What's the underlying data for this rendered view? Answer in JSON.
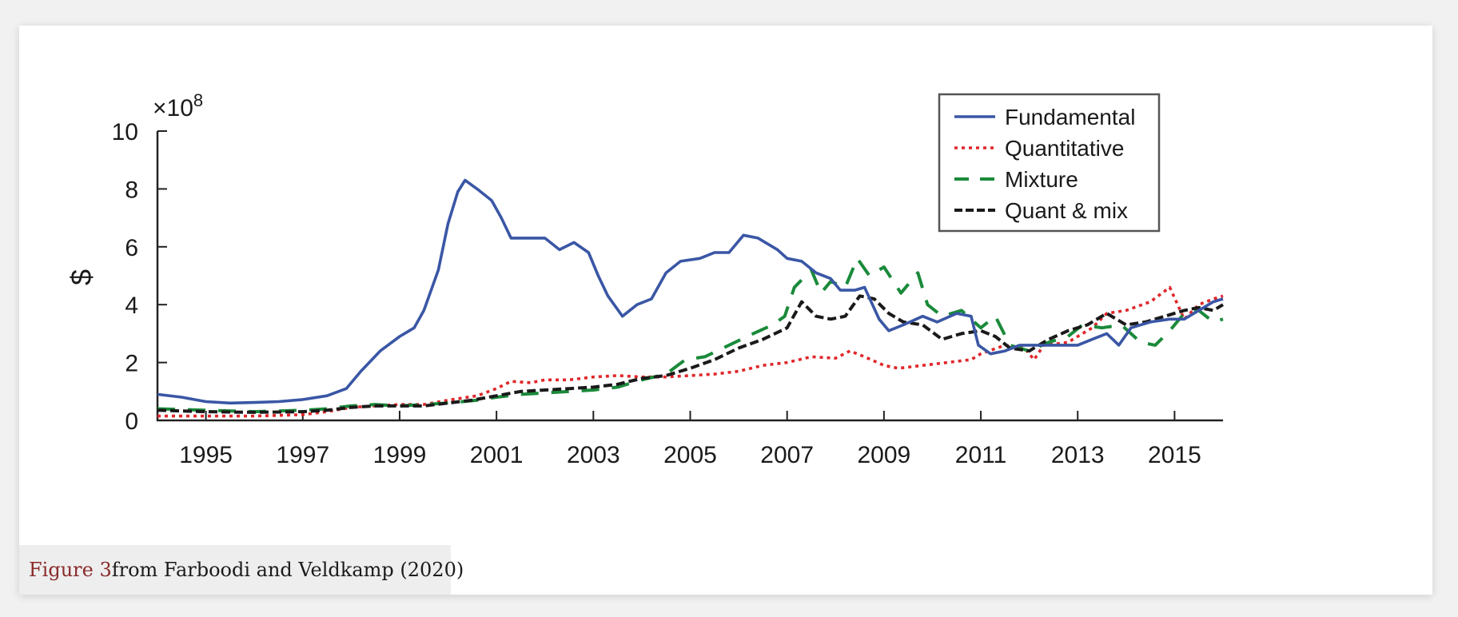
{
  "colors": {
    "fundamental": "#3a56a5",
    "quantitative": "#e0262a",
    "mixture": "#1a8a3a",
    "quant_mix": "#1a1a1a",
    "caption_accent": "#8a2b2b"
  },
  "caption": {
    "figure": "Figure 3",
    "source": " from Farboodi and Veldkamp (2020)"
  },
  "chart_data": {
    "type": "line",
    "ylabel": "$",
    "y_multiplier_label": "×10",
    "y_multiplier_exp": "8",
    "ylim": [
      0,
      10
    ],
    "yticks": [
      0,
      2,
      4,
      6,
      8,
      10
    ],
    "xlim": [
      1994.0,
      2016.0
    ],
    "xticks": [
      1995,
      1997,
      1999,
      2001,
      2003,
      2005,
      2007,
      2009,
      2011,
      2013,
      2015
    ],
    "grid": false,
    "legend": "top-right",
    "series": [
      {
        "name": "Fundamental",
        "style": "solid",
        "points": [
          [
            1994.0,
            0.9
          ],
          [
            1994.5,
            0.8
          ],
          [
            1995.0,
            0.65
          ],
          [
            1995.5,
            0.6
          ],
          [
            1996.0,
            0.62
          ],
          [
            1996.5,
            0.65
          ],
          [
            1997.0,
            0.72
          ],
          [
            1997.5,
            0.85
          ],
          [
            1997.9,
            1.1
          ],
          [
            1998.2,
            1.7
          ],
          [
            1998.6,
            2.4
          ],
          [
            1999.0,
            2.9
          ],
          [
            1999.3,
            3.2
          ],
          [
            1999.5,
            3.8
          ],
          [
            1999.8,
            5.2
          ],
          [
            2000.0,
            6.8
          ],
          [
            2000.2,
            7.9
          ],
          [
            2000.35,
            8.3
          ],
          [
            2000.6,
            8.0
          ],
          [
            2000.9,
            7.6
          ],
          [
            2001.1,
            7.0
          ],
          [
            2001.3,
            6.3
          ],
          [
            2001.6,
            6.3
          ],
          [
            2002.0,
            6.3
          ],
          [
            2002.3,
            5.9
          ],
          [
            2002.6,
            6.15
          ],
          [
            2002.9,
            5.8
          ],
          [
            2003.1,
            5.0
          ],
          [
            2003.3,
            4.3
          ],
          [
            2003.6,
            3.6
          ],
          [
            2003.9,
            4.0
          ],
          [
            2004.2,
            4.2
          ],
          [
            2004.5,
            5.1
          ],
          [
            2004.8,
            5.5
          ],
          [
            2005.2,
            5.6
          ],
          [
            2005.5,
            5.8
          ],
          [
            2005.8,
            5.8
          ],
          [
            2006.1,
            6.4
          ],
          [
            2006.4,
            6.3
          ],
          [
            2006.8,
            5.9
          ],
          [
            2007.0,
            5.6
          ],
          [
            2007.3,
            5.5
          ],
          [
            2007.6,
            5.1
          ],
          [
            2007.9,
            4.9
          ],
          [
            2008.1,
            4.5
          ],
          [
            2008.4,
            4.5
          ],
          [
            2008.6,
            4.6
          ],
          [
            2008.9,
            3.5
          ],
          [
            2009.1,
            3.1
          ],
          [
            2009.4,
            3.3
          ],
          [
            2009.8,
            3.6
          ],
          [
            2010.1,
            3.4
          ],
          [
            2010.5,
            3.7
          ],
          [
            2010.8,
            3.6
          ],
          [
            2010.95,
            2.6
          ],
          [
            2011.2,
            2.3
          ],
          [
            2011.5,
            2.4
          ],
          [
            2011.8,
            2.6
          ],
          [
            2012.2,
            2.6
          ],
          [
            2012.6,
            2.6
          ],
          [
            2013.0,
            2.6
          ],
          [
            2013.3,
            2.8
          ],
          [
            2013.6,
            3.0
          ],
          [
            2013.85,
            2.6
          ],
          [
            2014.1,
            3.2
          ],
          [
            2014.5,
            3.4
          ],
          [
            2014.9,
            3.5
          ],
          [
            2015.2,
            3.5
          ],
          [
            2015.5,
            3.8
          ],
          [
            2015.8,
            4.1
          ],
          [
            2016.0,
            4.2
          ]
        ]
      },
      {
        "name": "Quantitative",
        "style": "dotted",
        "points": [
          [
            1994.0,
            0.15
          ],
          [
            1995.0,
            0.15
          ],
          [
            1996.0,
            0.15
          ],
          [
            1997.0,
            0.2
          ],
          [
            1997.5,
            0.3
          ],
          [
            1998.0,
            0.45
          ],
          [
            1998.5,
            0.5
          ],
          [
            1999.0,
            0.55
          ],
          [
            1999.5,
            0.55
          ],
          [
            2000.0,
            0.7
          ],
          [
            2000.6,
            0.85
          ],
          [
            2001.0,
            1.1
          ],
          [
            2001.3,
            1.35
          ],
          [
            2001.7,
            1.3
          ],
          [
            2002.0,
            1.4
          ],
          [
            2002.5,
            1.4
          ],
          [
            2003.0,
            1.5
          ],
          [
            2003.5,
            1.55
          ],
          [
            2004.0,
            1.5
          ],
          [
            2004.5,
            1.5
          ],
          [
            2005.0,
            1.55
          ],
          [
            2005.5,
            1.6
          ],
          [
            2006.0,
            1.7
          ],
          [
            2006.5,
            1.9
          ],
          [
            2007.0,
            2.0
          ],
          [
            2007.5,
            2.2
          ],
          [
            2008.0,
            2.15
          ],
          [
            2008.3,
            2.4
          ],
          [
            2008.6,
            2.2
          ],
          [
            2009.0,
            1.9
          ],
          [
            2009.3,
            1.8
          ],
          [
            2009.8,
            1.9
          ],
          [
            2010.3,
            2.0
          ],
          [
            2010.8,
            2.1
          ],
          [
            2011.0,
            2.3
          ],
          [
            2011.5,
            2.6
          ],
          [
            2011.9,
            2.5
          ],
          [
            2012.1,
            2.1
          ],
          [
            2012.3,
            2.6
          ],
          [
            2012.8,
            2.7
          ],
          [
            2013.0,
            2.9
          ],
          [
            2013.3,
            3.2
          ],
          [
            2013.6,
            3.7
          ],
          [
            2014.0,
            3.8
          ],
          [
            2014.5,
            4.1
          ],
          [
            2014.9,
            4.6
          ],
          [
            2015.2,
            3.5
          ],
          [
            2015.5,
            4.0
          ],
          [
            2015.8,
            4.2
          ],
          [
            2016.0,
            4.3
          ]
        ]
      },
      {
        "name": "Mixture",
        "style": "dashed",
        "points": [
          [
            1994.0,
            0.4
          ],
          [
            1995.0,
            0.35
          ],
          [
            1996.0,
            0.3
          ],
          [
            1997.0,
            0.35
          ],
          [
            1997.5,
            0.4
          ],
          [
            1998.0,
            0.5
          ],
          [
            1998.5,
            0.55
          ],
          [
            1999.0,
            0.5
          ],
          [
            1999.5,
            0.55
          ],
          [
            2000.0,
            0.6
          ],
          [
            2000.6,
            0.7
          ],
          [
            2001.0,
            0.8
          ],
          [
            2001.5,
            0.9
          ],
          [
            2002.0,
            0.95
          ],
          [
            2002.5,
            1.0
          ],
          [
            2003.0,
            1.05
          ],
          [
            2003.5,
            1.15
          ],
          [
            2004.0,
            1.4
          ],
          [
            2004.5,
            1.6
          ],
          [
            2004.9,
            2.1
          ],
          [
            2005.3,
            2.2
          ],
          [
            2005.8,
            2.6
          ],
          [
            2006.3,
            3.0
          ],
          [
            2006.7,
            3.3
          ],
          [
            2006.95,
            3.6
          ],
          [
            2007.15,
            4.6
          ],
          [
            2007.5,
            5.2
          ],
          [
            2007.7,
            4.4
          ],
          [
            2007.9,
            4.8
          ],
          [
            2008.2,
            4.6
          ],
          [
            2008.45,
            5.6
          ],
          [
            2008.7,
            5.0
          ],
          [
            2009.0,
            5.3
          ],
          [
            2009.35,
            4.4
          ],
          [
            2009.55,
            4.8
          ],
          [
            2009.7,
            5.1
          ],
          [
            2009.9,
            4.0
          ],
          [
            2010.2,
            3.6
          ],
          [
            2010.6,
            3.8
          ],
          [
            2011.0,
            3.2
          ],
          [
            2011.3,
            3.6
          ],
          [
            2011.6,
            2.6
          ],
          [
            2012.0,
            2.4
          ],
          [
            2012.4,
            2.7
          ],
          [
            2012.8,
            2.9
          ],
          [
            2013.1,
            3.3
          ],
          [
            2013.5,
            3.2
          ],
          [
            2013.9,
            3.3
          ],
          [
            2014.3,
            2.7
          ],
          [
            2014.6,
            2.6
          ],
          [
            2014.9,
            3.1
          ],
          [
            2015.2,
            3.7
          ],
          [
            2015.5,
            3.8
          ],
          [
            2015.8,
            3.4
          ],
          [
            2016.0,
            3.5
          ]
        ]
      },
      {
        "name": "Quant & mix",
        "style": "dashed",
        "points": [
          [
            1994.0,
            0.35
          ],
          [
            1995.0,
            0.3
          ],
          [
            1996.0,
            0.28
          ],
          [
            1997.0,
            0.3
          ],
          [
            1997.5,
            0.35
          ],
          [
            1998.0,
            0.45
          ],
          [
            1998.5,
            0.5
          ],
          [
            1999.0,
            0.5
          ],
          [
            1999.5,
            0.5
          ],
          [
            2000.0,
            0.6
          ],
          [
            2000.5,
            0.7
          ],
          [
            2001.0,
            0.85
          ],
          [
            2001.5,
            1.0
          ],
          [
            2002.0,
            1.05
          ],
          [
            2002.5,
            1.1
          ],
          [
            2003.0,
            1.15
          ],
          [
            2003.5,
            1.25
          ],
          [
            2004.0,
            1.45
          ],
          [
            2004.5,
            1.55
          ],
          [
            2005.0,
            1.8
          ],
          [
            2005.5,
            2.1
          ],
          [
            2006.0,
            2.5
          ],
          [
            2006.5,
            2.8
          ],
          [
            2007.0,
            3.2
          ],
          [
            2007.3,
            4.1
          ],
          [
            2007.6,
            3.6
          ],
          [
            2007.9,
            3.5
          ],
          [
            2008.2,
            3.6
          ],
          [
            2008.5,
            4.3
          ],
          [
            2008.8,
            4.2
          ],
          [
            2009.1,
            3.7
          ],
          [
            2009.4,
            3.4
          ],
          [
            2009.8,
            3.3
          ],
          [
            2010.2,
            2.8
          ],
          [
            2010.6,
            3.0
          ],
          [
            2011.0,
            3.1
          ],
          [
            2011.3,
            2.9
          ],
          [
            2011.6,
            2.5
          ],
          [
            2012.0,
            2.4
          ],
          [
            2012.4,
            2.8
          ],
          [
            2012.8,
            3.1
          ],
          [
            2013.2,
            3.3
          ],
          [
            2013.6,
            3.7
          ],
          [
            2014.0,
            3.3
          ],
          [
            2014.4,
            3.4
          ],
          [
            2014.8,
            3.6
          ],
          [
            2015.2,
            3.8
          ],
          [
            2015.5,
            3.9
          ],
          [
            2015.8,
            3.8
          ],
          [
            2016.0,
            4.0
          ]
        ]
      }
    ]
  }
}
